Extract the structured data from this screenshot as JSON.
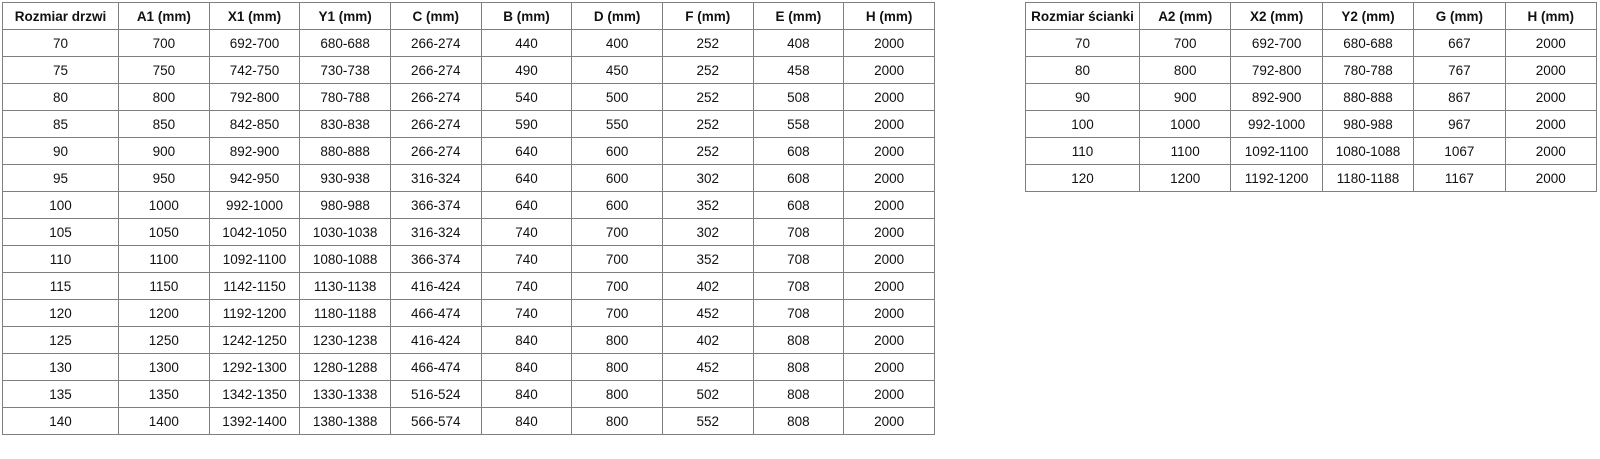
{
  "colors": {
    "border": "#7f7f7f",
    "text": "#111111",
    "background": "#ffffff"
  },
  "door_table": {
    "name": "door-size-table",
    "first_col_width": 116,
    "headers": [
      "Rozmiar drzwi",
      "A1 (mm)",
      "X1 (mm)",
      "Y1 (mm)",
      "C (mm)",
      "B (mm)",
      "D (mm)",
      "F (mm)",
      "E (mm)",
      "H (mm)"
    ],
    "rows": [
      [
        "70",
        "700",
        "692-700",
        "680-688",
        "266-274",
        "440",
        "400",
        "252",
        "408",
        "2000"
      ],
      [
        "75",
        "750",
        "742-750",
        "730-738",
        "266-274",
        "490",
        "450",
        "252",
        "458",
        "2000"
      ],
      [
        "80",
        "800",
        "792-800",
        "780-788",
        "266-274",
        "540",
        "500",
        "252",
        "508",
        "2000"
      ],
      [
        "85",
        "850",
        "842-850",
        "830-838",
        "266-274",
        "590",
        "550",
        "252",
        "558",
        "2000"
      ],
      [
        "90",
        "900",
        "892-900",
        "880-888",
        "266-274",
        "640",
        "600",
        "252",
        "608",
        "2000"
      ],
      [
        "95",
        "950",
        "942-950",
        "930-938",
        "316-324",
        "640",
        "600",
        "302",
        "608",
        "2000"
      ],
      [
        "100",
        "1000",
        "992-1000",
        "980-988",
        "366-374",
        "640",
        "600",
        "352",
        "608",
        "2000"
      ],
      [
        "105",
        "1050",
        "1042-1050",
        "1030-1038",
        "316-324",
        "740",
        "700",
        "302",
        "708",
        "2000"
      ],
      [
        "110",
        "1100",
        "1092-1100",
        "1080-1088",
        "366-374",
        "740",
        "700",
        "352",
        "708",
        "2000"
      ],
      [
        "115",
        "1150",
        "1142-1150",
        "1130-1138",
        "416-424",
        "740",
        "700",
        "402",
        "708",
        "2000"
      ],
      [
        "120",
        "1200",
        "1192-1200",
        "1180-1188",
        "466-474",
        "740",
        "700",
        "452",
        "708",
        "2000"
      ],
      [
        "125",
        "1250",
        "1242-1250",
        "1230-1238",
        "416-424",
        "840",
        "800",
        "402",
        "808",
        "2000"
      ],
      [
        "130",
        "1300",
        "1292-1300",
        "1280-1288",
        "466-474",
        "840",
        "800",
        "452",
        "808",
        "2000"
      ],
      [
        "135",
        "1350",
        "1342-1350",
        "1330-1338",
        "516-524",
        "840",
        "800",
        "502",
        "808",
        "2000"
      ],
      [
        "140",
        "1400",
        "1392-1400",
        "1380-1388",
        "566-574",
        "840",
        "800",
        "552",
        "808",
        "2000"
      ]
    ]
  },
  "wall_table": {
    "name": "wall-size-table",
    "first_col_width": 114,
    "headers": [
      "Rozmiar ścianki",
      "A2 (mm)",
      "X2 (mm)",
      "Y2 (mm)",
      "G (mm)",
      "H (mm)"
    ],
    "rows": [
      [
        "70",
        "700",
        "692-700",
        "680-688",
        "667",
        "2000"
      ],
      [
        "80",
        "800",
        "792-800",
        "780-788",
        "767",
        "2000"
      ],
      [
        "90",
        "900",
        "892-900",
        "880-888",
        "867",
        "2000"
      ],
      [
        "100",
        "1000",
        "992-1000",
        "980-988",
        "967",
        "2000"
      ],
      [
        "110",
        "1100",
        "1092-1100",
        "1080-1088",
        "1067",
        "2000"
      ],
      [
        "120",
        "1200",
        "1192-1200",
        "1180-1188",
        "1167",
        "2000"
      ]
    ]
  }
}
